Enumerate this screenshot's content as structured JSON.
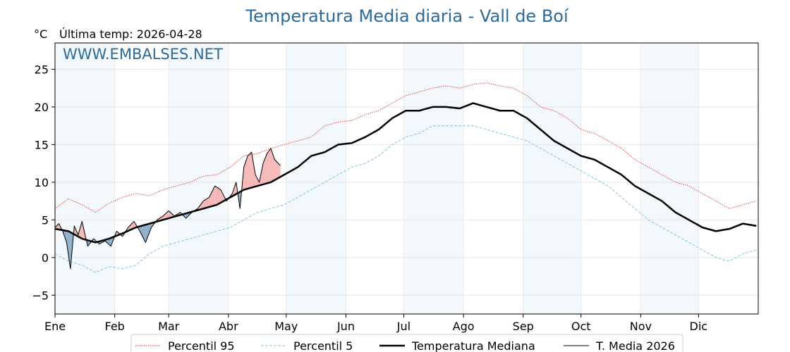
{
  "chart_data": {
    "type": "line",
    "title": "Temperatura Media diaria - Vall de Boí",
    "y_unit": "°C",
    "subtitle": "Última temp: 2026-04-28",
    "watermark": "WWW.EMBALSES.NET",
    "xlim": [
      1,
      366
    ],
    "ylim": [
      -7.5,
      28.5
    ],
    "yticks": [
      -5,
      0,
      5,
      10,
      15,
      20,
      25
    ],
    "month_labels": [
      "Ene",
      "Feb",
      "Mar",
      "Abr",
      "May",
      "Jun",
      "Jul",
      "Ago",
      "Sep",
      "Oct",
      "Nov",
      "Dic"
    ],
    "month_start_days": [
      1,
      32,
      60,
      91,
      121,
      152,
      182,
      213,
      244,
      274,
      305,
      335
    ],
    "shaded_months": [
      1,
      3,
      5,
      7,
      9,
      11
    ],
    "grid": true,
    "legend_position": "bottom",
    "series": [
      {
        "name": "Percentil 95",
        "style": "dotted",
        "color": "#e8322b",
        "x": [
          1,
          8,
          15,
          22,
          29,
          36,
          43,
          50,
          57,
          64,
          71,
          78,
          85,
          92,
          99,
          106,
          113,
          120,
          127,
          134,
          141,
          148,
          155,
          162,
          169,
          176,
          183,
          190,
          197,
          204,
          211,
          218,
          225,
          232,
          239,
          246,
          253,
          260,
          267,
          274,
          281,
          288,
          295,
          302,
          309,
          316,
          323,
          330,
          337,
          344,
          351,
          358,
          365
        ],
        "y": [
          6.5,
          7.8,
          7.0,
          6.0,
          7.2,
          8.0,
          8.5,
          8.2,
          9.0,
          9.5,
          10.0,
          10.8,
          11.0,
          12.0,
          13.5,
          13.8,
          14.5,
          15.0,
          15.5,
          16.0,
          17.5,
          18.0,
          18.2,
          19.0,
          19.5,
          20.5,
          21.5,
          22.0,
          22.5,
          22.8,
          22.5,
          23.0,
          23.2,
          22.8,
          22.5,
          21.5,
          20.0,
          19.5,
          18.5,
          17.0,
          16.5,
          15.5,
          14.5,
          13.0,
          12.0,
          11.0,
          10.0,
          9.5,
          8.5,
          7.5,
          6.5,
          7.0,
          7.5
        ]
      },
      {
        "name": "Percentil 5",
        "style": "dashed",
        "color": "#8ecae6",
        "x": [
          1,
          8,
          15,
          22,
          29,
          36,
          43,
          50,
          57,
          64,
          71,
          78,
          85,
          92,
          99,
          106,
          113,
          120,
          127,
          134,
          141,
          148,
          155,
          162,
          169,
          176,
          183,
          190,
          197,
          204,
          211,
          218,
          225,
          232,
          239,
          246,
          253,
          260,
          267,
          274,
          281,
          288,
          295,
          302,
          309,
          316,
          323,
          330,
          337,
          344,
          351,
          358,
          365
        ],
        "y": [
          0.5,
          -0.5,
          -1.0,
          -2.0,
          -1.2,
          -1.5,
          -1.0,
          0.5,
          1.5,
          2.0,
          2.5,
          3.0,
          3.5,
          4.0,
          5.0,
          6.0,
          6.5,
          7.0,
          8.0,
          9.0,
          10.0,
          11.0,
          12.0,
          12.5,
          13.5,
          15.0,
          16.0,
          16.5,
          17.5,
          17.5,
          17.5,
          17.5,
          17.0,
          16.5,
          16.0,
          15.5,
          14.5,
          13.5,
          12.5,
          11.5,
          10.5,
          9.5,
          8.0,
          6.5,
          5.0,
          4.0,
          3.0,
          2.0,
          1.0,
          0.0,
          -0.5,
          0.5,
          1.0
        ]
      },
      {
        "name": "Temperatura Mediana",
        "style": "solid-thick",
        "color": "#000000",
        "x": [
          1,
          8,
          15,
          22,
          29,
          36,
          43,
          50,
          57,
          64,
          71,
          78,
          85,
          92,
          99,
          106,
          113,
          120,
          127,
          134,
          141,
          148,
          155,
          162,
          169,
          176,
          183,
          190,
          197,
          204,
          211,
          218,
          225,
          232,
          239,
          246,
          253,
          260,
          267,
          274,
          281,
          288,
          295,
          302,
          309,
          316,
          323,
          330,
          337,
          344,
          351,
          358,
          365
        ],
        "y": [
          3.8,
          3.5,
          2.5,
          2.0,
          2.5,
          3.2,
          4.0,
          4.5,
          5.0,
          5.5,
          6.0,
          6.5,
          7.0,
          8.0,
          9.0,
          9.5,
          10.0,
          11.0,
          12.0,
          13.5,
          14.0,
          15.0,
          15.2,
          16.0,
          17.0,
          18.5,
          19.5,
          19.5,
          20.0,
          20.0,
          19.8,
          20.5,
          20.0,
          19.5,
          19.5,
          18.5,
          17.0,
          15.5,
          14.5,
          13.5,
          13.0,
          12.0,
          11.0,
          9.5,
          8.5,
          7.5,
          6.0,
          5.0,
          4.0,
          3.5,
          3.8,
          4.5,
          4.2
        ]
      },
      {
        "name": "T. Media 2026",
        "style": "solid-thin",
        "color": "#000000",
        "x": [
          1,
          3,
          5,
          7,
          9,
          11,
          13,
          15,
          18,
          21,
          24,
          27,
          30,
          33,
          36,
          39,
          42,
          45,
          48,
          51,
          54,
          57,
          60,
          63,
          66,
          69,
          72,
          75,
          78,
          81,
          84,
          87,
          90,
          93,
          95,
          97,
          99,
          101,
          103,
          105,
          107,
          109,
          111,
          113,
          115,
          118
        ],
        "y": [
          4.0,
          4.5,
          3.5,
          2.0,
          -1.5,
          4.2,
          3.0,
          4.8,
          1.5,
          2.5,
          1.8,
          2.2,
          1.5,
          3.5,
          2.8,
          4.0,
          4.8,
          3.5,
          2.0,
          4.0,
          5.0,
          5.5,
          6.2,
          5.5,
          6.0,
          5.2,
          6.0,
          6.5,
          7.5,
          8.0,
          9.5,
          9.0,
          7.5,
          8.5,
          10.0,
          6.5,
          12.0,
          13.5,
          14.0,
          11.0,
          10.0,
          12.5,
          13.8,
          14.5,
          13.0,
          12.2
        ]
      }
    ]
  }
}
